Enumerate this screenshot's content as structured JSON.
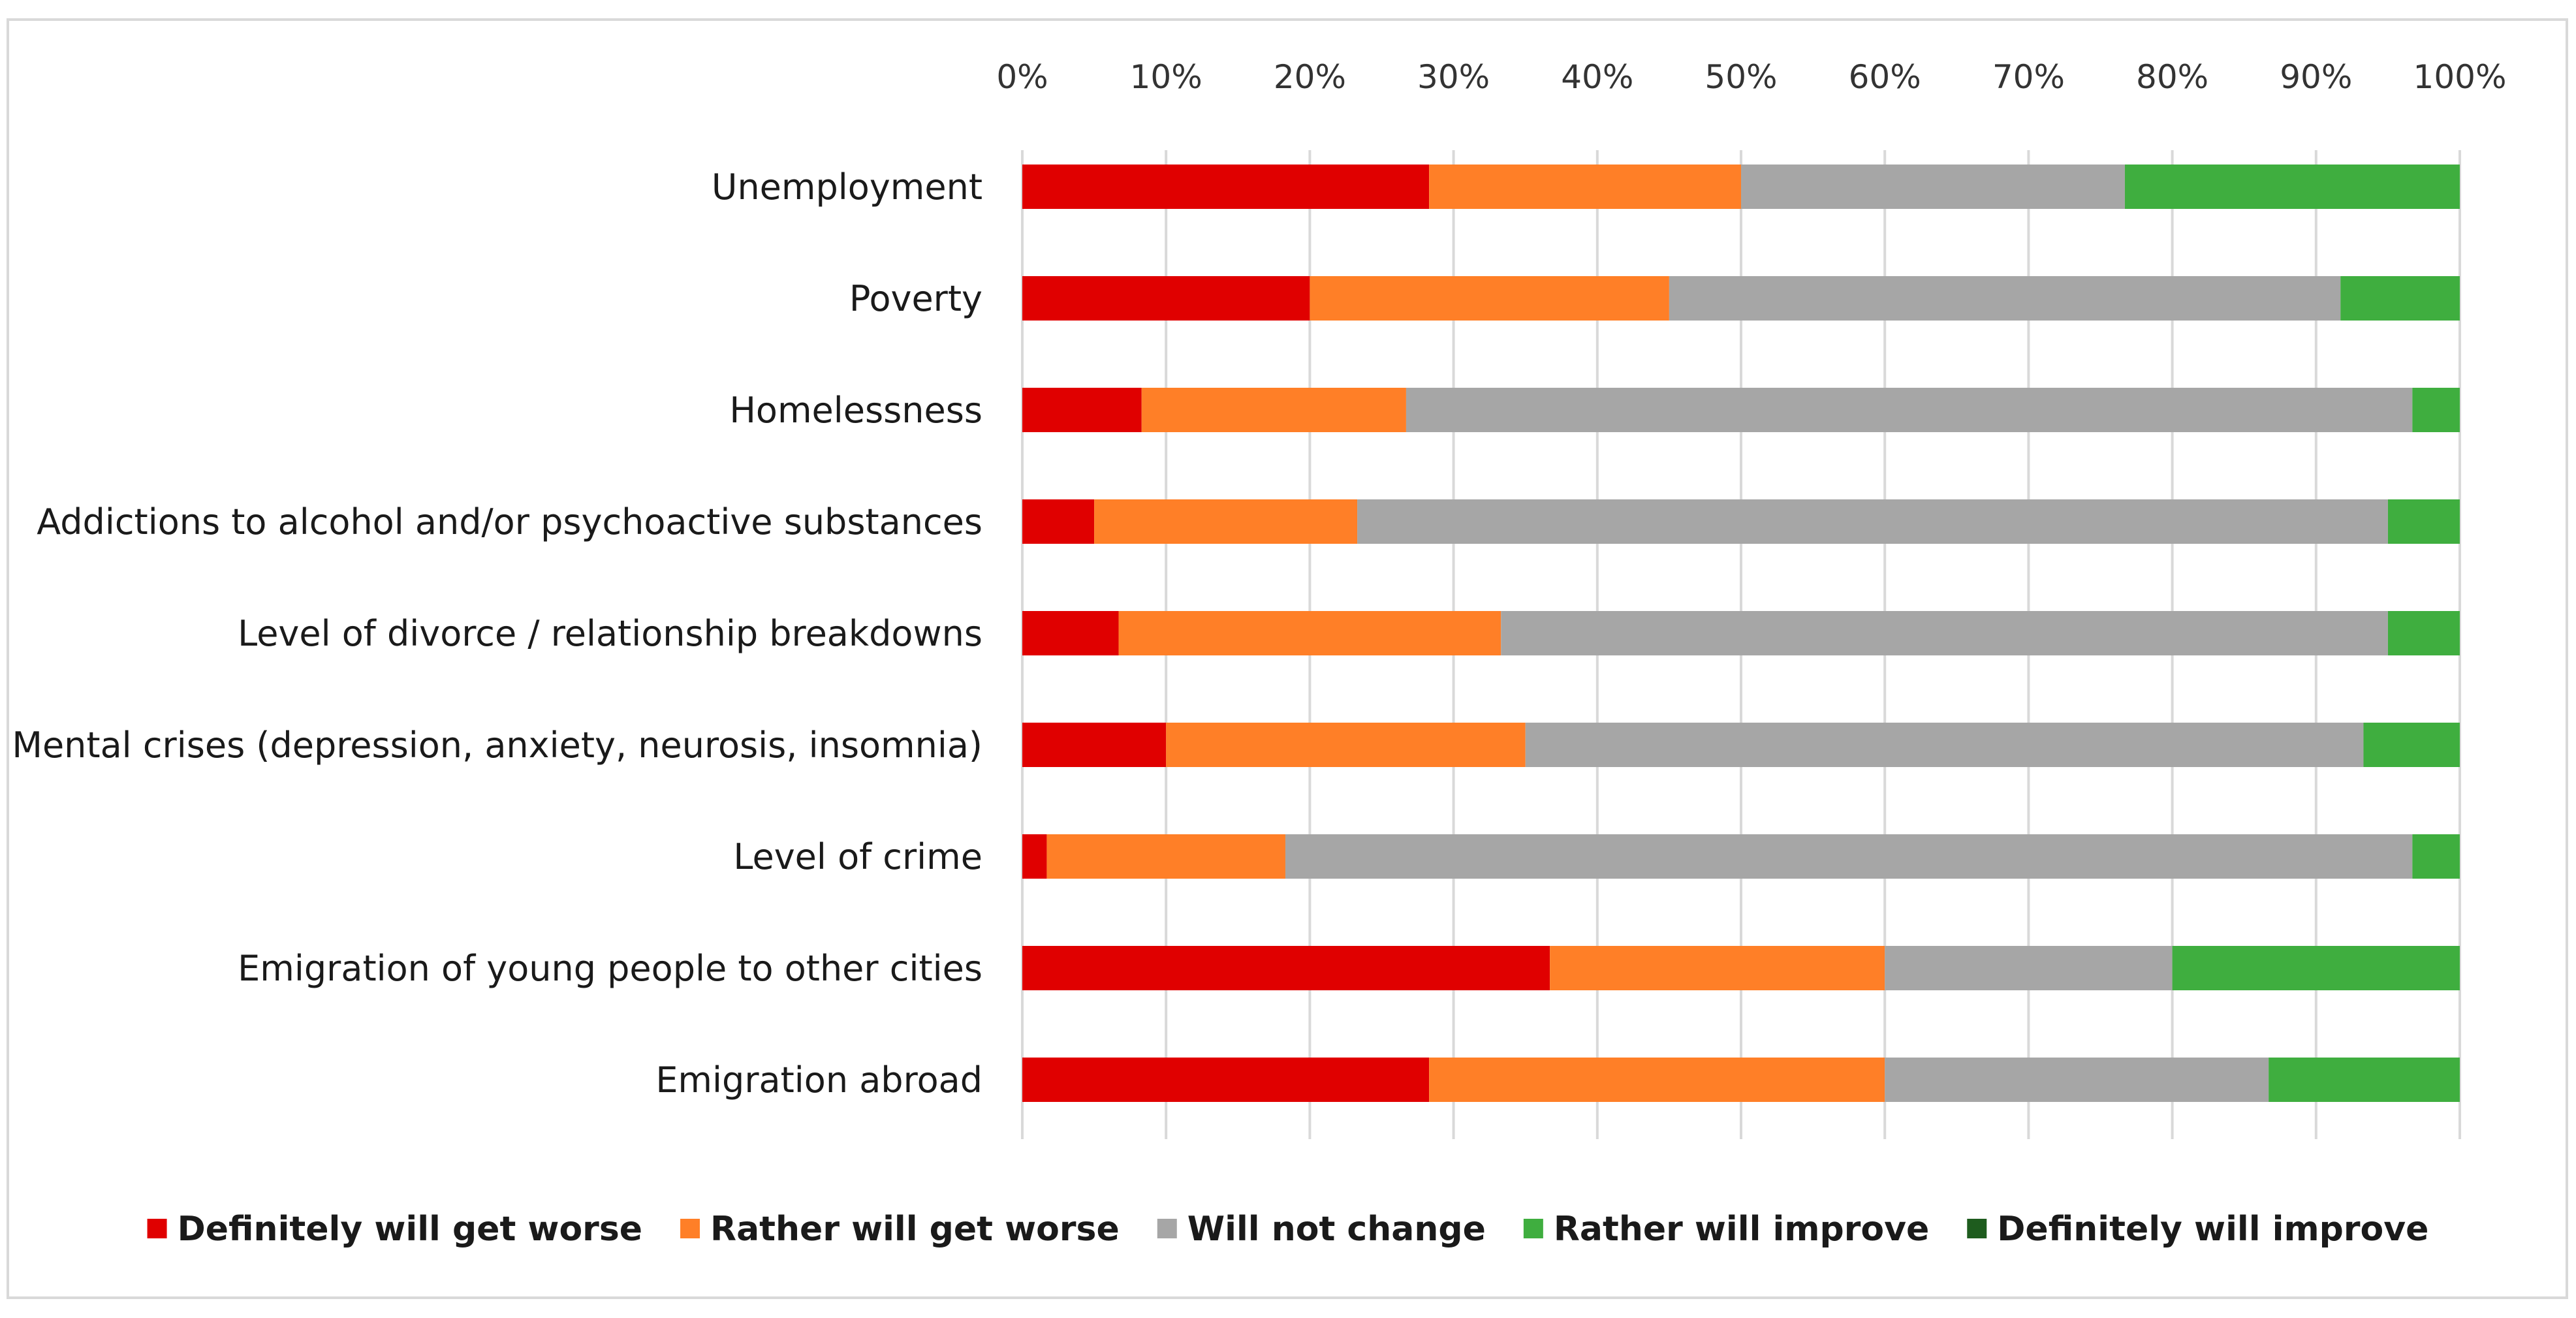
{
  "chart_data": {
    "type": "bar",
    "orientation": "horizontal",
    "stacked": "100%",
    "title": "",
    "xlabel": "",
    "ylabel": "",
    "xlim": [
      0,
      100
    ],
    "x_ticks": [
      "0%",
      "10%",
      "20%",
      "30%",
      "40%",
      "50%",
      "60%",
      "70%",
      "80%",
      "90%",
      "100%"
    ],
    "x_axis_position": "top",
    "grid": true,
    "legend_position": "bottom",
    "categories": [
      "Unemployment",
      "Poverty",
      "Homelessness",
      "Addictions to alcohol and/or psychoactive substances",
      "Level of divorce / relationship breakdowns",
      "Mental crises (depression, anxiety, neurosis, insomnia)",
      "Level of crime",
      "Emigration of young people to other cities",
      "Emigration abroad"
    ],
    "series": [
      {
        "name": "Definitely will get worse",
        "color": "#e00000",
        "values": [
          28.3,
          20.0,
          8.3,
          5.0,
          6.7,
          10.0,
          1.7,
          36.7,
          28.3
        ]
      },
      {
        "name": "Rather will get worse",
        "color": "#ff7f27",
        "values": [
          21.7,
          25.0,
          18.4,
          18.3,
          26.6,
          25.0,
          16.6,
          23.3,
          31.7
        ]
      },
      {
        "name": "Will not change",
        "color": "#a6a6a6",
        "values": [
          26.7,
          46.7,
          70.0,
          71.7,
          61.7,
          58.3,
          78.4,
          20.0,
          26.7
        ]
      },
      {
        "name": "Rather will improve",
        "color": "#3fae3f",
        "values": [
          23.3,
          8.3,
          3.3,
          5.0,
          5.0,
          6.7,
          3.3,
          20.0,
          13.3
        ]
      },
      {
        "name": "Definitely will improve",
        "color": "#1e5c1e",
        "values": [
          0,
          0,
          0,
          0,
          0,
          0,
          0,
          0,
          0
        ]
      }
    ]
  }
}
